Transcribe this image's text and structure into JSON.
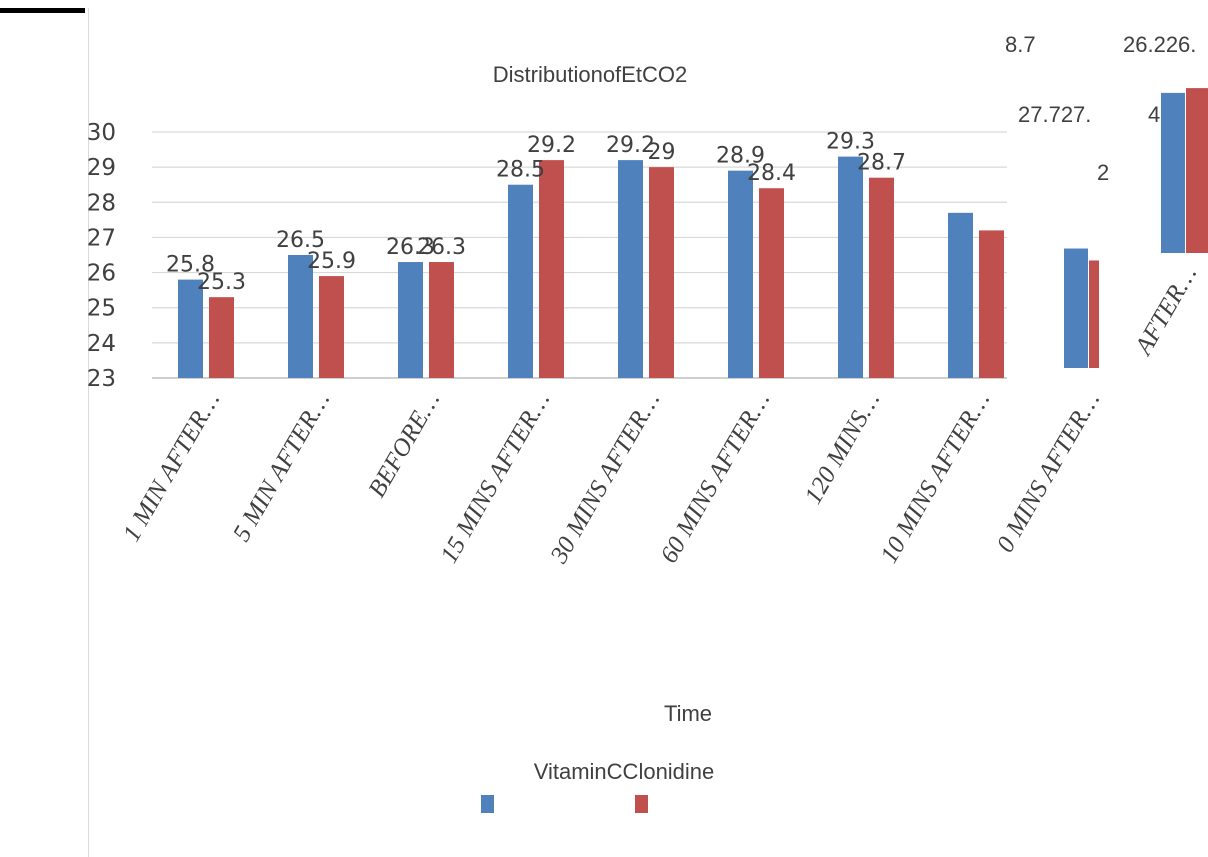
{
  "chart_data": {
    "type": "bar",
    "title": "DistributionofEtCO2",
    "xlabel": "Time",
    "ylabel": "",
    "ylim": [
      23,
      30
    ],
    "yticks": [
      23,
      24,
      25,
      26,
      27,
      28,
      29,
      30
    ],
    "grid": true,
    "legend_text": "VitaminCClonidine",
    "legend_position": "bottom",
    "categories": [
      "1 MIN AFTER…",
      "5 MIN AFTER…",
      "BEFORE…",
      "15 MINS AFTER…",
      "30 MINS AFTER…",
      "60 MINS AFTER…",
      "120 MINS…",
      "10 MINS AFTER…",
      "0 MINS AFTER…",
      "AFTER…"
    ],
    "series": [
      {
        "color": "#4f81bd",
        "values": [
          25.8,
          26.5,
          26.3,
          28.5,
          29.2,
          28.9,
          29.3,
          27.7,
          28.0,
          29.7
        ],
        "labels": [
          "25.8",
          "26.5",
          "26.3",
          "28.5",
          "29.2",
          "28.9",
          "29.3",
          "",
          "",
          ""
        ]
      },
      {
        "color": "#c0504d",
        "values": [
          25.3,
          25.9,
          26.3,
          29.2,
          29.0,
          28.4,
          28.7,
          27.2,
          27.5,
          29.9
        ],
        "labels": [
          "25.3",
          "25.9",
          "26.3",
          "29.2",
          "29",
          "28.4",
          "28.7",
          "",
          "",
          ""
        ]
      }
    ],
    "stray_labels": [
      "8.7",
      "26.226.",
      "27.727.",
      "4",
      "2"
    ]
  }
}
